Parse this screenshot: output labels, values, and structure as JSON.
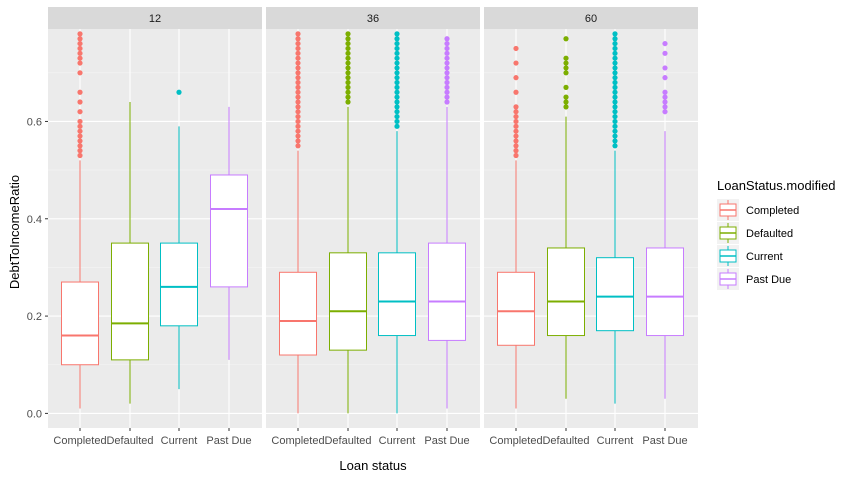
{
  "chart_data": {
    "type": "boxplot",
    "xlabel": "Loan status",
    "ylabel": "DebtToIncomeRatio",
    "ylim": [
      -0.03,
      0.79
    ],
    "y_ticks": [
      0.0,
      0.2,
      0.4,
      0.6
    ],
    "y_tick_labels": [
      "0.0",
      "0.2",
      "0.4",
      "0.6"
    ],
    "categories": [
      "Completed",
      "Defaulted",
      "Current",
      "Past Due"
    ],
    "legend": {
      "title": "LoanStatus.modified",
      "position": "right",
      "entries": [
        "Completed",
        "Defaulted",
        "Current",
        "Past Due"
      ]
    },
    "colors": {
      "Completed": "#F8766D",
      "Defaulted": "#7CAE00",
      "Current": "#00BFC4",
      "Past Due": "#C77CFF"
    },
    "grid": true,
    "panels": [
      {
        "label": "12",
        "boxes": [
          {
            "category": "Completed",
            "lower_whisker": 0.01,
            "q1": 0.1,
            "median": 0.16,
            "q3": 0.27,
            "upper_whisker": 0.52,
            "outliers": [
              0.53,
              0.54,
              0.55,
              0.56,
              0.57,
              0.58,
              0.59,
              0.6,
              0.62,
              0.64,
              0.66,
              0.7,
              0.72,
              0.73,
              0.74,
              0.75,
              0.76,
              0.77,
              0.78,
              0.79
            ]
          },
          {
            "category": "Defaulted",
            "lower_whisker": 0.02,
            "q1": 0.11,
            "median": 0.185,
            "q3": 0.35,
            "upper_whisker": 0.64,
            "outliers": []
          },
          {
            "category": "Current",
            "lower_whisker": 0.05,
            "q1": 0.18,
            "median": 0.26,
            "q3": 0.35,
            "upper_whisker": 0.59,
            "outliers": [
              0.66
            ]
          },
          {
            "category": "Past Due",
            "lower_whisker": 0.11,
            "q1": 0.26,
            "median": 0.42,
            "q3": 0.49,
            "upper_whisker": 0.63,
            "outliers": []
          }
        ]
      },
      {
        "label": "36",
        "boxes": [
          {
            "category": "Completed",
            "lower_whisker": 0.0,
            "q1": 0.12,
            "median": 0.19,
            "q3": 0.29,
            "upper_whisker": 0.54,
            "outliers": [
              0.55,
              0.56,
              0.57,
              0.58,
              0.59,
              0.6,
              0.61,
              0.62,
              0.63,
              0.64,
              0.65,
              0.66,
              0.67,
              0.68,
              0.69,
              0.7,
              0.71,
              0.72,
              0.73,
              0.74,
              0.75,
              0.76,
              0.77,
              0.78,
              0.79
            ]
          },
          {
            "category": "Defaulted",
            "lower_whisker": 0.0,
            "q1": 0.13,
            "median": 0.21,
            "q3": 0.33,
            "upper_whisker": 0.63,
            "outliers": [
              0.64,
              0.65,
              0.66,
              0.67,
              0.68,
              0.69,
              0.7,
              0.71,
              0.72,
              0.73,
              0.74,
              0.75,
              0.76,
              0.77,
              0.78,
              0.79
            ]
          },
          {
            "category": "Current",
            "lower_whisker": 0.0,
            "q1": 0.16,
            "median": 0.23,
            "q3": 0.33,
            "upper_whisker": 0.58,
            "outliers": [
              0.59,
              0.6,
              0.61,
              0.62,
              0.63,
              0.64,
              0.65,
              0.66,
              0.67,
              0.68,
              0.69,
              0.7,
              0.71,
              0.72,
              0.73,
              0.74,
              0.75,
              0.76,
              0.77,
              0.78,
              0.79
            ]
          },
          {
            "category": "Past Due",
            "lower_whisker": 0.01,
            "q1": 0.15,
            "median": 0.23,
            "q3": 0.35,
            "upper_whisker": 0.63,
            "outliers": [
              0.64,
              0.65,
              0.66,
              0.67,
              0.68,
              0.69,
              0.7,
              0.71,
              0.72,
              0.73,
              0.74,
              0.75,
              0.76,
              0.77
            ]
          }
        ]
      },
      {
        "label": "60",
        "boxes": [
          {
            "category": "Completed",
            "lower_whisker": 0.01,
            "q1": 0.14,
            "median": 0.21,
            "q3": 0.29,
            "upper_whisker": 0.52,
            "outliers": [
              0.53,
              0.54,
              0.55,
              0.56,
              0.57,
              0.58,
              0.59,
              0.6,
              0.61,
              0.62,
              0.63,
              0.66,
              0.69,
              0.72,
              0.75,
              0.79
            ]
          },
          {
            "category": "Defaulted",
            "lower_whisker": 0.03,
            "q1": 0.16,
            "median": 0.23,
            "q3": 0.34,
            "upper_whisker": 0.61,
            "outliers": [
              0.63,
              0.64,
              0.65,
              0.67,
              0.7,
              0.71,
              0.72,
              0.73,
              0.77,
              0.79
            ]
          },
          {
            "category": "Current",
            "lower_whisker": 0.02,
            "q1": 0.17,
            "median": 0.24,
            "q3": 0.32,
            "upper_whisker": 0.54,
            "outliers": [
              0.55,
              0.56,
              0.57,
              0.58,
              0.59,
              0.6,
              0.61,
              0.62,
              0.63,
              0.64,
              0.65,
              0.66,
              0.67,
              0.68,
              0.69,
              0.7,
              0.71,
              0.72,
              0.73,
              0.74,
              0.75,
              0.76,
              0.77,
              0.78,
              0.79
            ]
          },
          {
            "category": "Past Due",
            "lower_whisker": 0.03,
            "q1": 0.16,
            "median": 0.24,
            "q3": 0.34,
            "upper_whisker": 0.58,
            "outliers": [
              0.62,
              0.63,
              0.64,
              0.65,
              0.66,
              0.69,
              0.71,
              0.74,
              0.76
            ]
          }
        ]
      }
    ]
  }
}
